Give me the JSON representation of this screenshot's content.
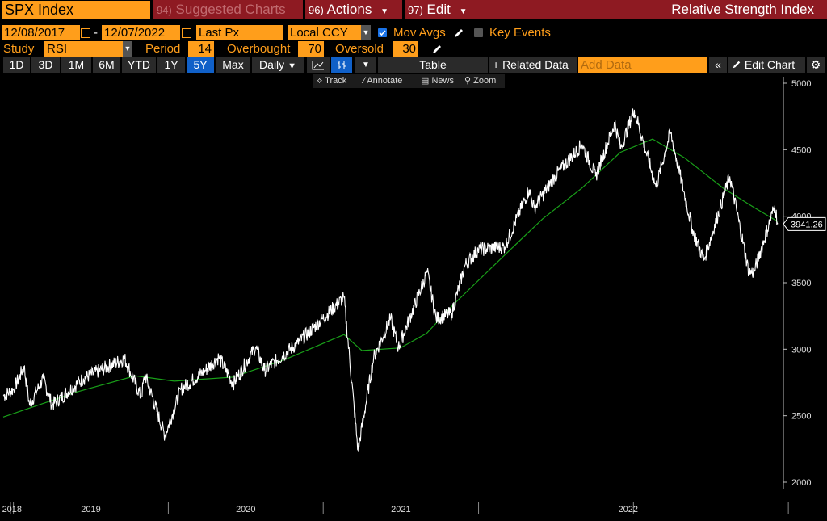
{
  "header": {
    "ticker": "SPX Index",
    "suggested_num": "94)",
    "suggested_label": "Suggested Charts",
    "actions_num": "96)",
    "actions_label": "Actions",
    "edit_num": "97)",
    "edit_label": "Edit",
    "title": "Relative Strength Index"
  },
  "params": {
    "start_date": "12/08/2017",
    "separator": "-",
    "end_date": "12/07/2022",
    "price_field": "Last Px",
    "currency": "Local CCY",
    "mov_avgs_label": "Mov Avgs",
    "mov_avgs_checked": true,
    "key_events_label": "Key Events",
    "key_events_checked": false
  },
  "study": {
    "label": "Study",
    "value": "RSI",
    "period_label": "Period",
    "period": "14",
    "overbought_label": "Overbought",
    "overbought": "70",
    "oversold_label": "Oversold",
    "oversold": "30"
  },
  "toolbar": {
    "ranges": [
      "1D",
      "3D",
      "1M",
      "6M",
      "YTD",
      "1Y",
      "5Y",
      "Max"
    ],
    "active_range": "5Y",
    "frequency": "Daily",
    "table_label": "Table",
    "related_label": "+ Related Data",
    "add_data_placeholder": "Add Data",
    "edit_chart_label": "Edit Chart"
  },
  "subtools": {
    "track": "Track",
    "annotate": "Annotate",
    "news": "News",
    "zoom": "Zoom"
  },
  "colors": {
    "orange": "#ff9e1b",
    "header_red": "#8e1a22",
    "price_line": "#ffffff",
    "moving_average": "#19a019",
    "active_blue": "#1060c8"
  },
  "chart_data": {
    "type": "line",
    "title": "",
    "xlabel": "",
    "ylabel": "",
    "ylim": [
      1980,
      5050
    ],
    "y_ticks": [
      2000,
      2500,
      3000,
      3500,
      4000,
      4500,
      5000
    ],
    "x_ticks": [
      "2018",
      "2019",
      "2020",
      "2021",
      "2022"
    ],
    "last_value_label": "3941.26",
    "grid": false,
    "series": [
      {
        "style": "price",
        "x": [
          "2017-12-08",
          "2018-01-02",
          "2018-01-26",
          "2018-02-08",
          "2018-03-12",
          "2018-04-02",
          "2018-06-15",
          "2018-09-20",
          "2018-10-29",
          "2018-11-07",
          "2018-12-24",
          "2019-01-31",
          "2019-03-29",
          "2019-04-30",
          "2019-06-03",
          "2019-07-26",
          "2019-08-15",
          "2019-10-31",
          "2019-12-31",
          "2020-02-19",
          "2020-03-23",
          "2020-04-29",
          "2020-06-08",
          "2020-06-26",
          "2020-09-02",
          "2020-09-23",
          "2020-10-30",
          "2020-11-30",
          "2020-12-31",
          "2021-03-04",
          "2021-04-30",
          "2021-05-12",
          "2021-06-30",
          "2021-09-02",
          "2021-10-04",
          "2021-11-18",
          "2021-12-02",
          "2022-01-03",
          "2022-02-23",
          "2022-03-29",
          "2022-05-20",
          "2022-06-16",
          "2022-08-16",
          "2022-09-30",
          "2022-10-12",
          "2022-11-30",
          "2022-12-07"
        ],
        "values": [
          2650,
          2700,
          2870,
          2580,
          2780,
          2580,
          2780,
          2930,
          2640,
          2810,
          2350,
          2700,
          2840,
          2940,
          2740,
          3020,
          2840,
          3040,
          3230,
          3390,
          2240,
          2940,
          3230,
          3010,
          3580,
          3230,
          3270,
          3630,
          3750,
          3770,
          4200,
          4060,
          4300,
          4540,
          4300,
          4700,
          4510,
          4800,
          4220,
          4630,
          3900,
          3670,
          4300,
          3580,
          3580,
          4080,
          3941.26
        ]
      },
      {
        "style": "moving_average",
        "x": [
          "2017-12-08",
          "2018-06-01",
          "2018-10-15",
          "2019-01-15",
          "2019-06-01",
          "2019-10-01",
          "2020-02-19",
          "2020-04-01",
          "2020-07-01",
          "2020-09-01",
          "2020-11-01",
          "2021-03-01",
          "2021-06-01",
          "2021-09-01",
          "2021-12-01",
          "2022-02-15",
          "2022-05-01",
          "2022-08-01",
          "2022-10-15",
          "2022-12-07"
        ],
        "values": [
          2490,
          2680,
          2800,
          2760,
          2790,
          2920,
          3110,
          2990,
          3010,
          3120,
          3330,
          3700,
          3980,
          4210,
          4480,
          4580,
          4440,
          4210,
          4060,
          3960
        ]
      }
    ]
  }
}
